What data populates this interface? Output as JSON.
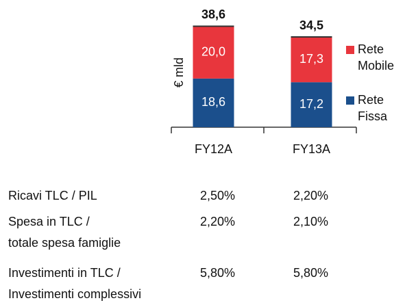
{
  "chart_data": {
    "type": "stacked_bar",
    "y_label": "€ mld",
    "categories": [
      "FY12A",
      "FY13A"
    ],
    "series": [
      {
        "name": "Rete Fissa",
        "color": "#1b4f8c",
        "values": [
          18.6,
          17.2
        ],
        "value_labels": [
          "18,6",
          "17,2"
        ]
      },
      {
        "name": "Rete Mobile",
        "color": "#e8363d",
        "values": [
          20.0,
          17.3
        ],
        "value_labels": [
          "20,0",
          "17,3"
        ]
      }
    ],
    "totals": [
      38.6,
      34.5
    ],
    "total_labels": [
      "38,6",
      "34,5"
    ],
    "ylim": [
      0,
      40
    ],
    "legend": "right"
  },
  "table": {
    "rows": [
      [
        "Ricavi TLC / PIL",
        "2,50%",
        "2,20%"
      ],
      [
        "Spesa in TLC /\ntotale spesa famiglie",
        "2,20%",
        "2,10%"
      ],
      [
        "Investimenti in TLC /\nInvestimenti complessivi",
        "5,80%",
        "5,80%"
      ]
    ]
  }
}
